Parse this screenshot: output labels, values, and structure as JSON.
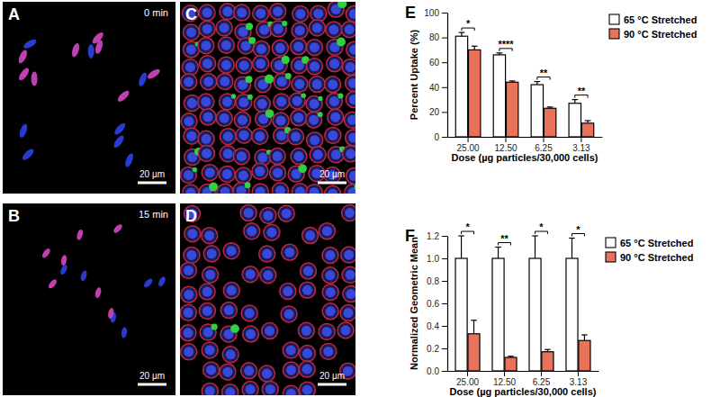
{
  "images": [
    {
      "label": "A",
      "caption": "0 min",
      "scale_bar": "20 µm"
    },
    {
      "label": "B",
      "caption": "15 min",
      "scale_bar": "20 µm"
    },
    {
      "label": "C",
      "scale_bar": "20 µm"
    },
    {
      "label": "D",
      "scale_bar": "20 µm"
    }
  ],
  "chart_data": [
    {
      "type": "bar",
      "panel": "E",
      "xlabel": "Dose (µg particles/30,000 cells)",
      "ylabel": "Percent Uptake (%)",
      "categories": [
        "25.00",
        "12.50",
        "6.25",
        "3.13"
      ],
      "series": [
        {
          "name": "65 °C Stretched",
          "color": "#ffffff",
          "values": [
            81,
            66,
            42,
            27
          ],
          "errors": [
            3,
            1.5,
            2.5,
            3
          ]
        },
        {
          "name": "90 °C Stretched",
          "color": "#e8735a",
          "values": [
            70,
            44,
            23,
            11
          ],
          "errors": [
            3,
            1,
            1,
            2
          ]
        }
      ],
      "annotations": [
        "*",
        "****",
        "**",
        "**"
      ],
      "ylim": [
        0,
        100
      ],
      "yticks": [
        0,
        20,
        40,
        60,
        80,
        100
      ],
      "grid": false,
      "legend": "top-right"
    },
    {
      "type": "bar",
      "panel": "F",
      "xlabel": "Dose (µg particles/30,000 cells)",
      "ylabel": "Normalized Geometric Mean",
      "categories": [
        "25.00",
        "12.50",
        "6.25",
        "3.13"
      ],
      "series": [
        {
          "name": "65 °C Stretched",
          "color": "#ffffff",
          "values": [
            1,
            1,
            1,
            1
          ],
          "errors": [
            0.2,
            0.1,
            0.2,
            0.18
          ]
        },
        {
          "name": "90 °C Stretched",
          "color": "#e8735a",
          "values": [
            0.33,
            0.12,
            0.17,
            0.27
          ],
          "errors": [
            0.12,
            0.01,
            0.02,
            0.05
          ]
        }
      ],
      "annotations": [
        "*",
        "**",
        "*",
        "*"
      ],
      "ylim": [
        0,
        1.2
      ],
      "yticks": [
        {
          "value": 0,
          "label": "0.0"
        },
        0.2,
        0.4,
        0.6,
        0.8,
        {
          "value": 1,
          "label": "1.0"
        },
        1.2
      ],
      "grid": false,
      "legend": "top-right"
    }
  ]
}
